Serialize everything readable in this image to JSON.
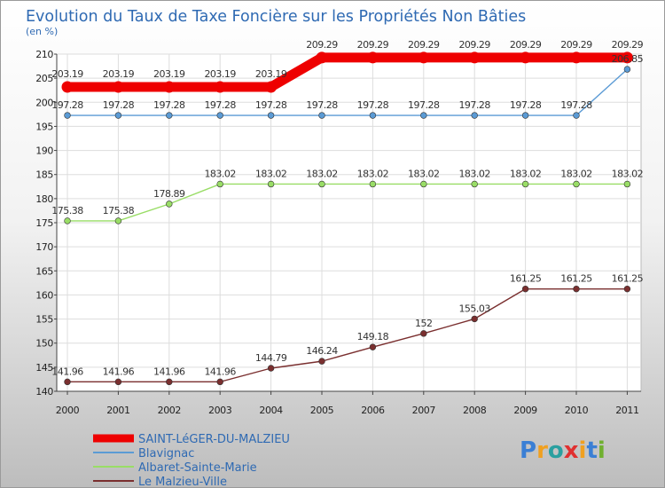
{
  "chart_data": {
    "type": "line",
    "title": "Evolution du Taux de Taxe Foncière sur les Propriétés Non Bâties",
    "ylabel": "(en %)",
    "xlabel": "",
    "x": [
      "2000",
      "2001",
      "2002",
      "2003",
      "2004",
      "2005",
      "2006",
      "2007",
      "2008",
      "2009",
      "2010",
      "2011"
    ],
    "ylim": [
      140,
      210
    ],
    "yticks": [
      "140",
      "145",
      "150",
      "155",
      "160",
      "165",
      "170",
      "175",
      "180",
      "185",
      "190",
      "195",
      "200",
      "205",
      "210"
    ],
    "grid": true,
    "legend_position": "bottom-left",
    "series": [
      {
        "name": "SAINT-LéGER-DU-MALZIEU",
        "color": "#ee0000",
        "values": [
          203.19,
          203.19,
          203.19,
          203.19,
          203.19,
          209.29,
          209.29,
          209.29,
          209.29,
          209.29,
          209.29,
          209.29
        ],
        "labels": [
          "203.19",
          "203.19",
          "203.19",
          "203.19",
          "203.19",
          "209.29",
          "209.29",
          "209.29",
          "209.29",
          "209.29",
          "209.29",
          "209.29"
        ]
      },
      {
        "name": "Blavignac",
        "color": "#5b9bd5",
        "values": [
          197.28,
          197.28,
          197.28,
          197.28,
          197.28,
          197.28,
          197.28,
          197.28,
          197.28,
          197.28,
          197.28,
          206.85
        ],
        "labels": [
          "197.28",
          "197.28",
          "197.28",
          "197.28",
          "197.28",
          "197.28",
          "197.28",
          "197.28",
          "197.28",
          "197.28",
          "197.28",
          "206.85"
        ]
      },
      {
        "name": "Albaret-Sainte-Marie",
        "color": "#99dd66",
        "values": [
          175.38,
          175.38,
          178.89,
          183.02,
          183.02,
          183.02,
          183.02,
          183.02,
          183.02,
          183.02,
          183.02,
          183.02
        ],
        "labels": [
          "175.38",
          "175.38",
          "178.89",
          "183.02",
          "183.02",
          "183.02",
          "183.02",
          "183.02",
          "183.02",
          "183.02",
          "183.02",
          "183.02"
        ]
      },
      {
        "name": "Le Malzieu-Ville",
        "color": "#7a2f2f",
        "values": [
          141.96,
          141.96,
          141.96,
          141.96,
          144.79,
          146.24,
          149.18,
          152,
          155.03,
          161.25,
          161.25,
          161.25
        ],
        "labels": [
          "141.96",
          "141.96",
          "141.96",
          "141.96",
          "144.79",
          "146.24",
          "149.18",
          "152",
          "155.03",
          "161.25",
          "161.25",
          "161.25"
        ]
      }
    ]
  },
  "logo": {
    "text": "Proxiti",
    "letter_colors": [
      "#3a7fd5",
      "#f0a020",
      "#2aa0a0",
      "#e03030",
      "#f0a020",
      "#3a7fd5",
      "#70b030"
    ]
  }
}
